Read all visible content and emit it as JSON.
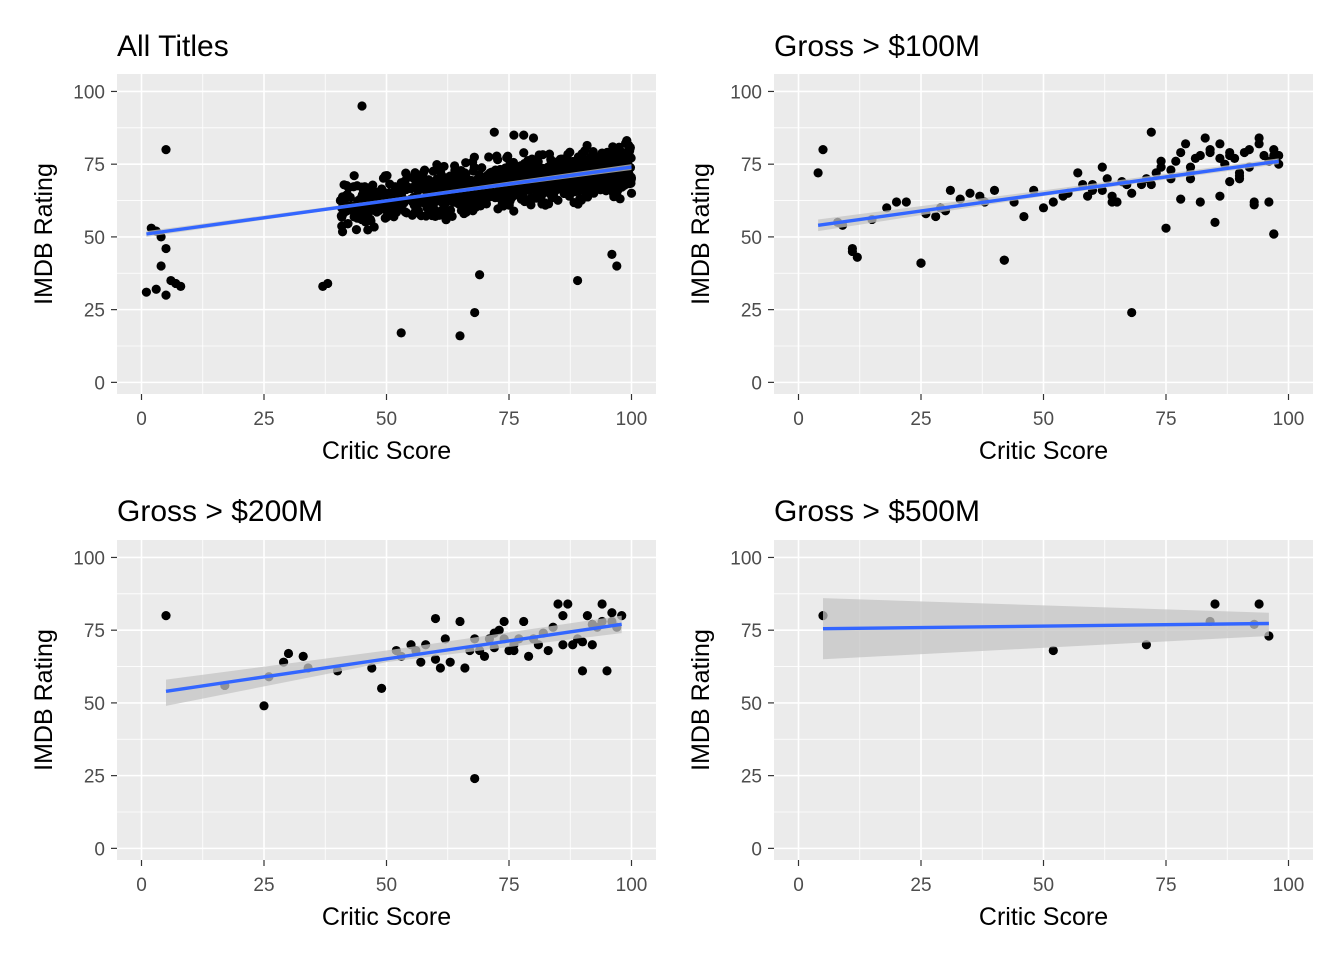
{
  "colors": {
    "panel_background": "#ebebeb",
    "grid": "#ffffff",
    "points": "#000000",
    "trend_line": "#3366ff",
    "confidence_band": "#c4c4c4",
    "tick_text": "#4d4d4d"
  },
  "chart_data": [
    {
      "type": "scatter",
      "title": "All Titles",
      "xlabel": "Critic Score",
      "ylabel": "IMDB Rating",
      "xlim": [
        -5,
        105
      ],
      "ylim": [
        -4,
        106
      ],
      "x_ticks": [
        "0",
        "25",
        "50",
        "75",
        "100"
      ],
      "y_ticks": [
        "0",
        "25",
        "50",
        "75",
        "100"
      ],
      "grid": true,
      "trend": {
        "x": [
          1,
          100
        ],
        "y": [
          51,
          74
        ]
      },
      "band": {
        "x": [
          1,
          50,
          100
        ],
        "lower": [
          50,
          62,
          73
        ],
        "upper": [
          52,
          63,
          75
        ]
      },
      "points": {
        "x": [
          1,
          2,
          3,
          4,
          5,
          6,
          7,
          8,
          4,
          5,
          5,
          3,
          45,
          53,
          65,
          68,
          69,
          37,
          38,
          96,
          89,
          100,
          97,
          72,
          76,
          78,
          80
        ],
        "y": [
          31,
          53,
          52,
          40,
          30,
          35,
          34,
          33,
          50,
          80,
          46,
          32,
          95,
          17,
          16,
          24,
          37,
          33,
          34,
          44,
          35,
          65,
          40,
          86,
          85,
          85,
          84
        ]
      },
      "scatter_cloud": {
        "count": 1050,
        "x_range": [
          3,
          100
        ],
        "mean_intercept": 51,
        "mean_slope": 0.23,
        "spread": 7.5,
        "y_clip": [
          30,
          86
        ]
      }
    },
    {
      "type": "scatter",
      "title": "Gross > $100M",
      "xlabel": "Critic Score",
      "ylabel": "IMDB Rating",
      "xlim": [
        -5,
        105
      ],
      "ylim": [
        -4,
        106
      ],
      "x_ticks": [
        "0",
        "25",
        "50",
        "75",
        "100"
      ],
      "y_ticks": [
        "0",
        "25",
        "50",
        "75",
        "100"
      ],
      "grid": true,
      "trend": {
        "x": [
          4,
          98
        ],
        "y": [
          54,
          76
        ]
      },
      "band": {
        "x": [
          4,
          50,
          98
        ],
        "lower": [
          52,
          64,
          75
        ],
        "upper": [
          56,
          66,
          77
        ]
      },
      "points": {
        "x": [
          4,
          5,
          8,
          9,
          11,
          11,
          12,
          15,
          18,
          20,
          22,
          25,
          26,
          28,
          29,
          30,
          31,
          33,
          35,
          37,
          38,
          40,
          42,
          44,
          46,
          48,
          50,
          52,
          54,
          55,
          57,
          58,
          59,
          60,
          62,
          63,
          64,
          65,
          66,
          67,
          68,
          70,
          71,
          72,
          73,
          74,
          75,
          76,
          77,
          78,
          79,
          80,
          80,
          81,
          82,
          83,
          84,
          85,
          86,
          87,
          88,
          89,
          90,
          91,
          92,
          93,
          94,
          95,
          96,
          97,
          97,
          98,
          98,
          72,
          74,
          80,
          84,
          86,
          88,
          90,
          92,
          94,
          96,
          97,
          42,
          25,
          68,
          97,
          82,
          86,
          93,
          76,
          78,
          60,
          62,
          64,
          88,
          90
        ],
        "y": [
          72,
          80,
          55,
          54,
          46,
          45,
          43,
          56,
          60,
          62,
          62,
          41,
          58,
          57,
          60,
          59,
          66,
          63,
          65,
          64,
          62,
          66,
          42,
          62,
          57,
          66,
          60,
          62,
          64,
          65,
          72,
          68,
          64,
          68,
          66,
          70,
          64,
          62,
          69,
          68,
          65,
          68,
          70,
          86,
          72,
          74,
          53,
          70,
          76,
          79,
          82,
          72,
          70,
          77,
          78,
          84,
          79,
          55,
          82,
          75,
          78,
          77,
          72,
          79,
          80,
          62,
          84,
          78,
          62,
          51,
          80,
          78,
          75,
          68,
          76,
          74,
          80,
          77,
          79,
          70,
          74,
          82,
          76,
          78,
          42,
          41,
          24,
          51,
          62,
          64,
          61,
          73,
          63,
          66,
          74,
          62,
          69,
          71
        ]
      }
    },
    {
      "type": "scatter",
      "title": "Gross > $200M",
      "xlabel": "Critic Score",
      "ylabel": "IMDB Rating",
      "xlim": [
        -5,
        105
      ],
      "ylim": [
        -4,
        106
      ],
      "x_ticks": [
        "0",
        "25",
        "50",
        "75",
        "100"
      ],
      "y_ticks": [
        "0",
        "25",
        "50",
        "75",
        "100"
      ],
      "grid": true,
      "trend": {
        "x": [
          5,
          98
        ],
        "y": [
          54,
          77
        ]
      },
      "band": {
        "x": [
          5,
          50,
          98
        ],
        "lower": [
          49,
          64,
          74
        ],
        "upper": [
          58,
          68,
          80
        ]
      },
      "points": {
        "x": [
          5,
          17,
          25,
          26,
          29,
          30,
          33,
          34,
          40,
          47,
          49,
          52,
          53,
          55,
          56,
          57,
          58,
          60,
          61,
          63,
          65,
          66,
          67,
          68,
          69,
          70,
          71,
          72,
          73,
          74,
          75,
          76,
          77,
          78,
          79,
          80,
          81,
          82,
          83,
          84,
          85,
          86,
          87,
          88,
          89,
          90,
          91,
          92,
          93,
          94,
          95,
          96,
          97,
          98,
          68,
          90,
          94,
          60,
          62,
          72,
          74,
          76,
          86,
          92,
          96
        ],
        "y": [
          80,
          56,
          49,
          59,
          64,
          67,
          66,
          62,
          61,
          62,
          55,
          68,
          66,
          70,
          68,
          64,
          70,
          79,
          62,
          64,
          78,
          62,
          68,
          72,
          68,
          66,
          72,
          69,
          75,
          78,
          68,
          70,
          72,
          78,
          66,
          72,
          70,
          74,
          68,
          76,
          84,
          70,
          84,
          70,
          72,
          61,
          80,
          77,
          76,
          84,
          61,
          81,
          76,
          80,
          24,
          71,
          78,
          65,
          72,
          74,
          72,
          68,
          80,
          70,
          78
        ]
      }
    },
    {
      "type": "scatter",
      "title": "Gross > $500M",
      "xlabel": "Critic Score",
      "ylabel": "IMDB Rating",
      "xlim": [
        -5,
        105
      ],
      "ylim": [
        -4,
        106
      ],
      "x_ticks": [
        "0",
        "25",
        "50",
        "75",
        "100"
      ],
      "y_ticks": [
        "0",
        "25",
        "50",
        "75",
        "100"
      ],
      "grid": true,
      "trend": {
        "x": [
          5,
          96
        ],
        "y": [
          75.5,
          77.3
        ]
      },
      "band": {
        "x": [
          5,
          96
        ],
        "lower": [
          65,
          73
        ],
        "upper": [
          86,
          81
        ]
      },
      "points": {
        "x": [
          5,
          52,
          71,
          84,
          85,
          93,
          94,
          96
        ],
        "y": [
          80,
          68,
          70,
          78,
          84,
          77,
          84,
          73
        ]
      }
    }
  ]
}
